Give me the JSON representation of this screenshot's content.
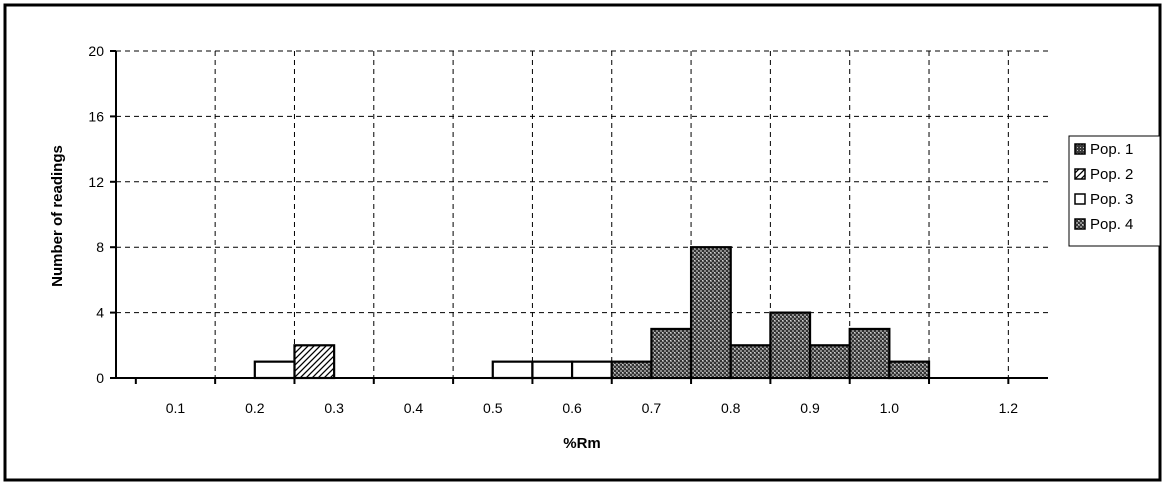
{
  "chart_data": {
    "type": "bar",
    "title": "",
    "xlabel": "%Rm",
    "ylabel": "Number of readings",
    "xlim": [
      0.1,
      1.2
    ],
    "ylim": [
      0,
      20
    ],
    "x_tick_labels": [
      "0.1",
      "0.2",
      "0.3",
      "0.4",
      "0.5",
      "0.6",
      "0.7",
      "0.8",
      "0.9",
      "1.0",
      "1.2"
    ],
    "y_tick_labels": [
      "0",
      "4",
      "8",
      "12",
      "16",
      "20"
    ],
    "y_ticks": [
      0,
      4,
      8,
      12,
      16,
      20
    ],
    "grid": true,
    "legend_placement": "right",
    "bin_width": 0.05,
    "series": [
      {
        "name": "Pop. 1",
        "pattern": "dense-dark-dots",
        "bins": []
      },
      {
        "name": "Pop. 2",
        "pattern": "diagonal-hatch",
        "bins": [
          {
            "x": 0.3,
            "value": 2
          }
        ]
      },
      {
        "name": "Pop. 3",
        "pattern": "white",
        "bins": [
          {
            "x": 0.25,
            "value": 1
          },
          {
            "x": 0.55,
            "value": 1
          },
          {
            "x": 0.6,
            "value": 1
          },
          {
            "x": 0.65,
            "value": 1
          }
        ]
      },
      {
        "name": "Pop. 4",
        "pattern": "crosshatch",
        "bins": [
          {
            "x": 0.7,
            "value": 1
          },
          {
            "x": 0.75,
            "value": 3
          },
          {
            "x": 0.8,
            "value": 8
          },
          {
            "x": 0.85,
            "value": 2
          },
          {
            "x": 0.9,
            "value": 4
          },
          {
            "x": 0.95,
            "value": 2
          },
          {
            "x": 1.0,
            "value": 3
          },
          {
            "x": 1.05,
            "value": 1
          }
        ]
      }
    ]
  }
}
